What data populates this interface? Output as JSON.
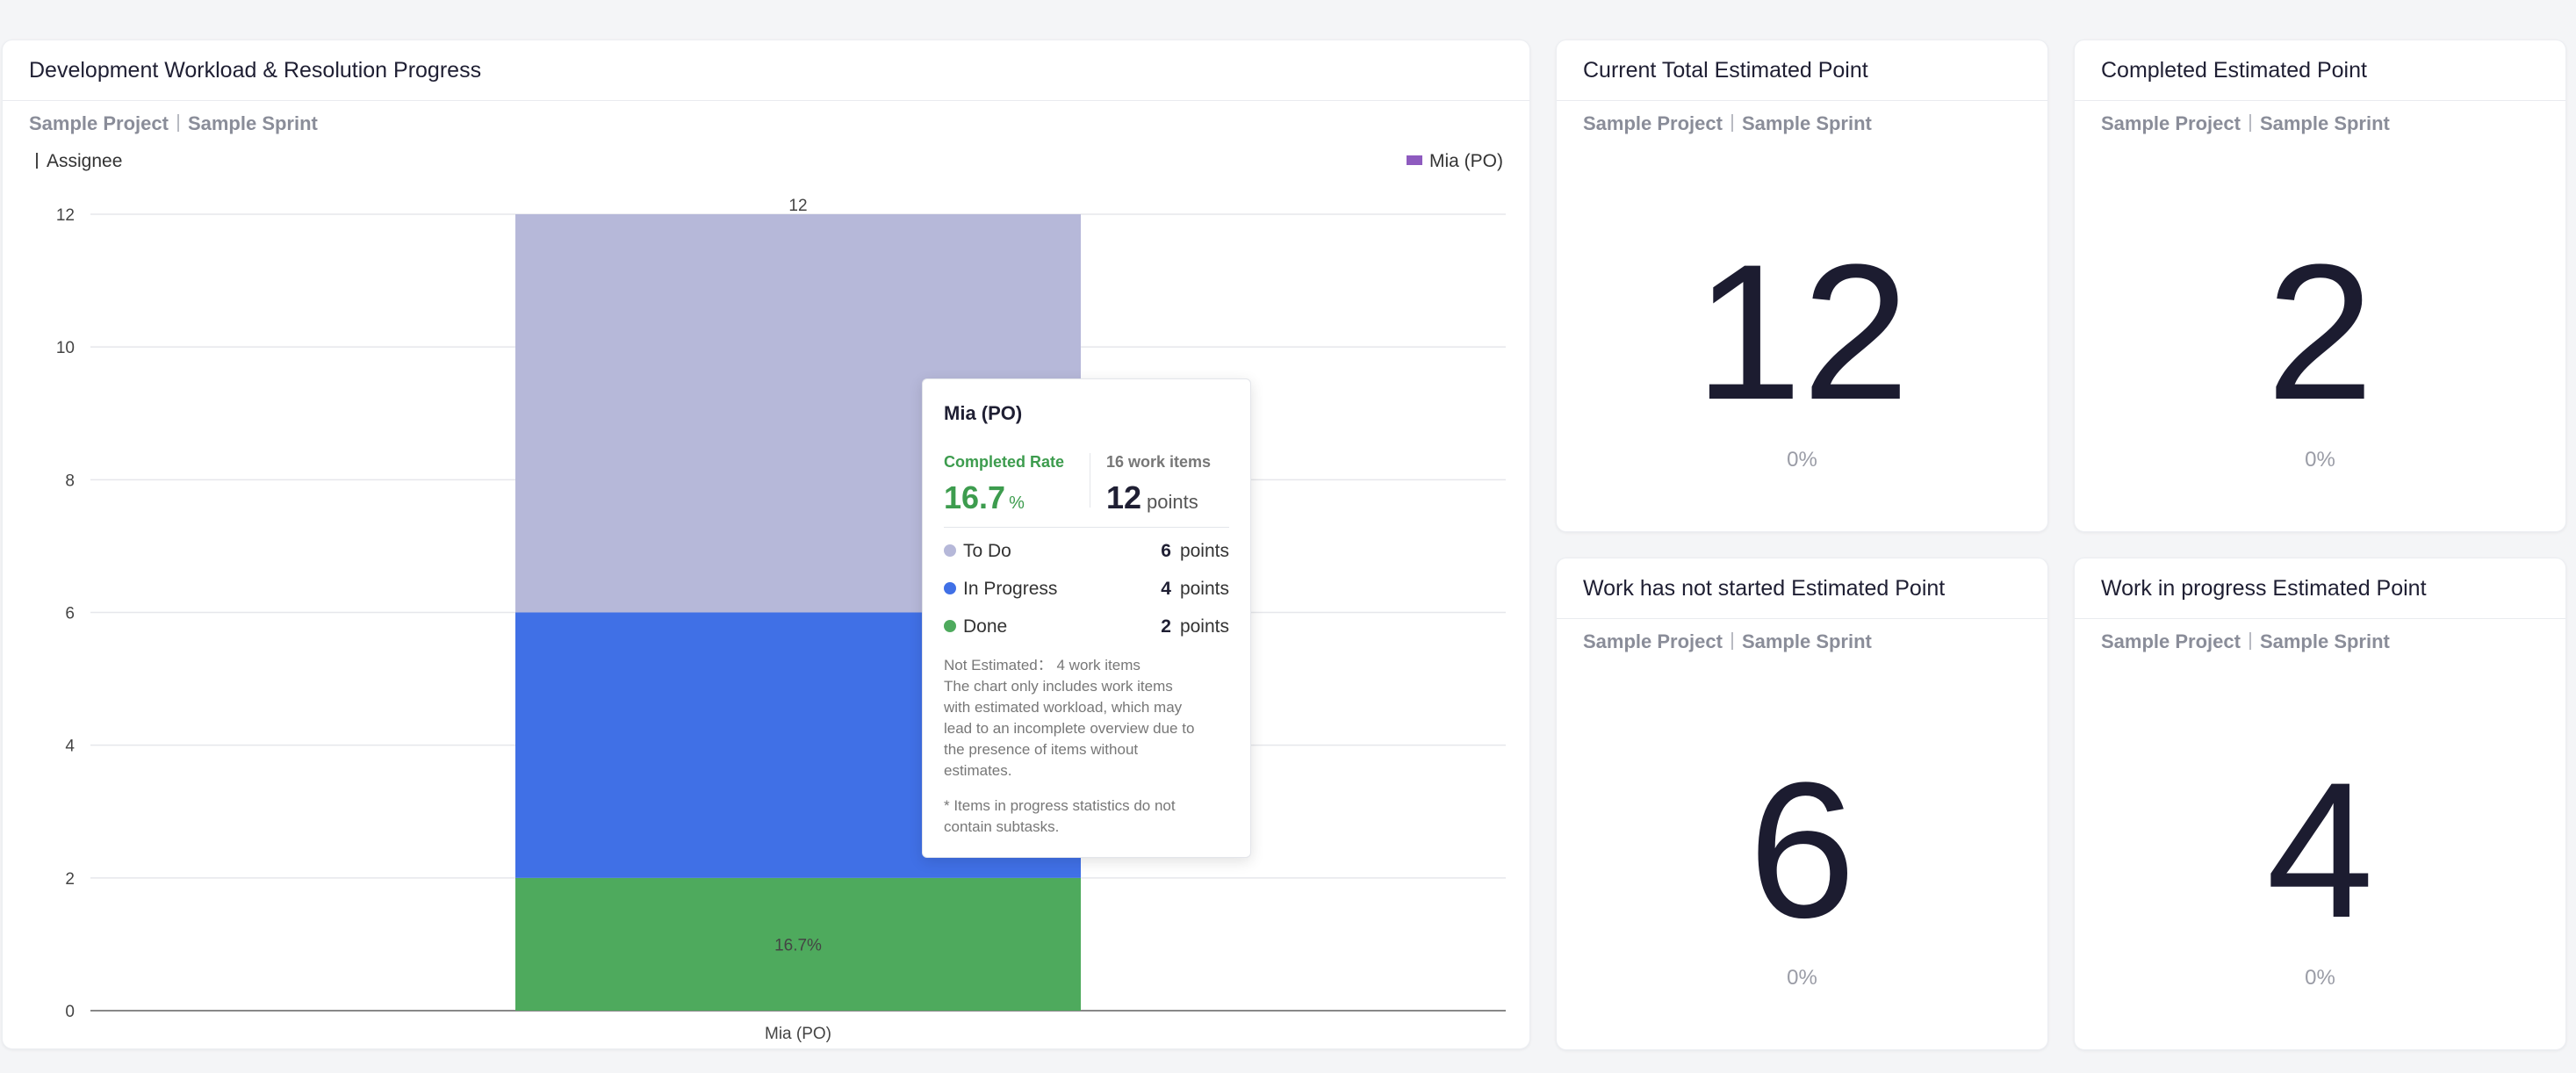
{
  "workload_card": {
    "title": "Development Workload & Resolution Progress",
    "project": "Sample Project",
    "sprint": "Sample Sprint",
    "group_by_label": "Assignee",
    "legend": "Mia (PO)",
    "legend_color": "#8e5bbf"
  },
  "chart_data": {
    "type": "bar",
    "stacked": true,
    "categories": [
      "Mia (PO)"
    ],
    "series": [
      {
        "name": "Done",
        "values": [
          2
        ],
        "color": "#4eaa5d"
      },
      {
        "name": "In Progress",
        "values": [
          4
        ],
        "color": "#4070e6"
      },
      {
        "name": "To Do",
        "values": [
          6
        ],
        "color": "#b6b8d9"
      }
    ],
    "total_labels": [
      "12"
    ],
    "segment_labels": [
      "16.7%"
    ],
    "ylim": [
      0,
      12
    ],
    "yticks": [
      "0",
      "2",
      "4",
      "6",
      "8",
      "10",
      "12"
    ],
    "ytick_values": [
      0,
      2,
      4,
      6,
      8,
      10,
      12
    ],
    "grid": true,
    "legend_position": "top-right"
  },
  "tooltip": {
    "title": "Mia (PO)",
    "completed_rate_label": "Completed Rate",
    "completed_rate": "16.7",
    "completed_rate_unit": "%",
    "work_items_label": "16 work items",
    "points_value": "12",
    "points_unit": "points",
    "rows": [
      {
        "label": "To Do",
        "value": "6",
        "unit": "points",
        "color": "#b6b8d9"
      },
      {
        "label": "In Progress",
        "value": "4",
        "unit": "points",
        "color": "#4070e6"
      },
      {
        "label": "Done",
        "value": "2",
        "unit": "points",
        "color": "#4eaa5d"
      }
    ],
    "not_estimated": "Not Estimated： 4 work items",
    "note_lines": [
      "The chart only includes work items",
      "with estimated workload, which may",
      "lead to an incomplete overview due to",
      "the presence of items without",
      "estimates."
    ],
    "footnote_lines": [
      "* Items in progress statistics do not",
      "contain subtasks."
    ]
  },
  "metric_cards": [
    {
      "title": "Current Total Estimated Point",
      "project": "Sample Project",
      "sprint": "Sample Sprint",
      "value": "12",
      "pct": "0%"
    },
    {
      "title": "Completed Estimated Point",
      "project": "Sample Project",
      "sprint": "Sample Sprint",
      "value": "2",
      "pct": "0%"
    },
    {
      "title": "Work has not started Estimated Point",
      "project": "Sample Project",
      "sprint": "Sample Sprint",
      "value": "6",
      "pct": "0%"
    },
    {
      "title": "Work in progress Estimated Point",
      "project": "Sample Project",
      "sprint": "Sample Sprint",
      "value": "4",
      "pct": "0%"
    }
  ]
}
